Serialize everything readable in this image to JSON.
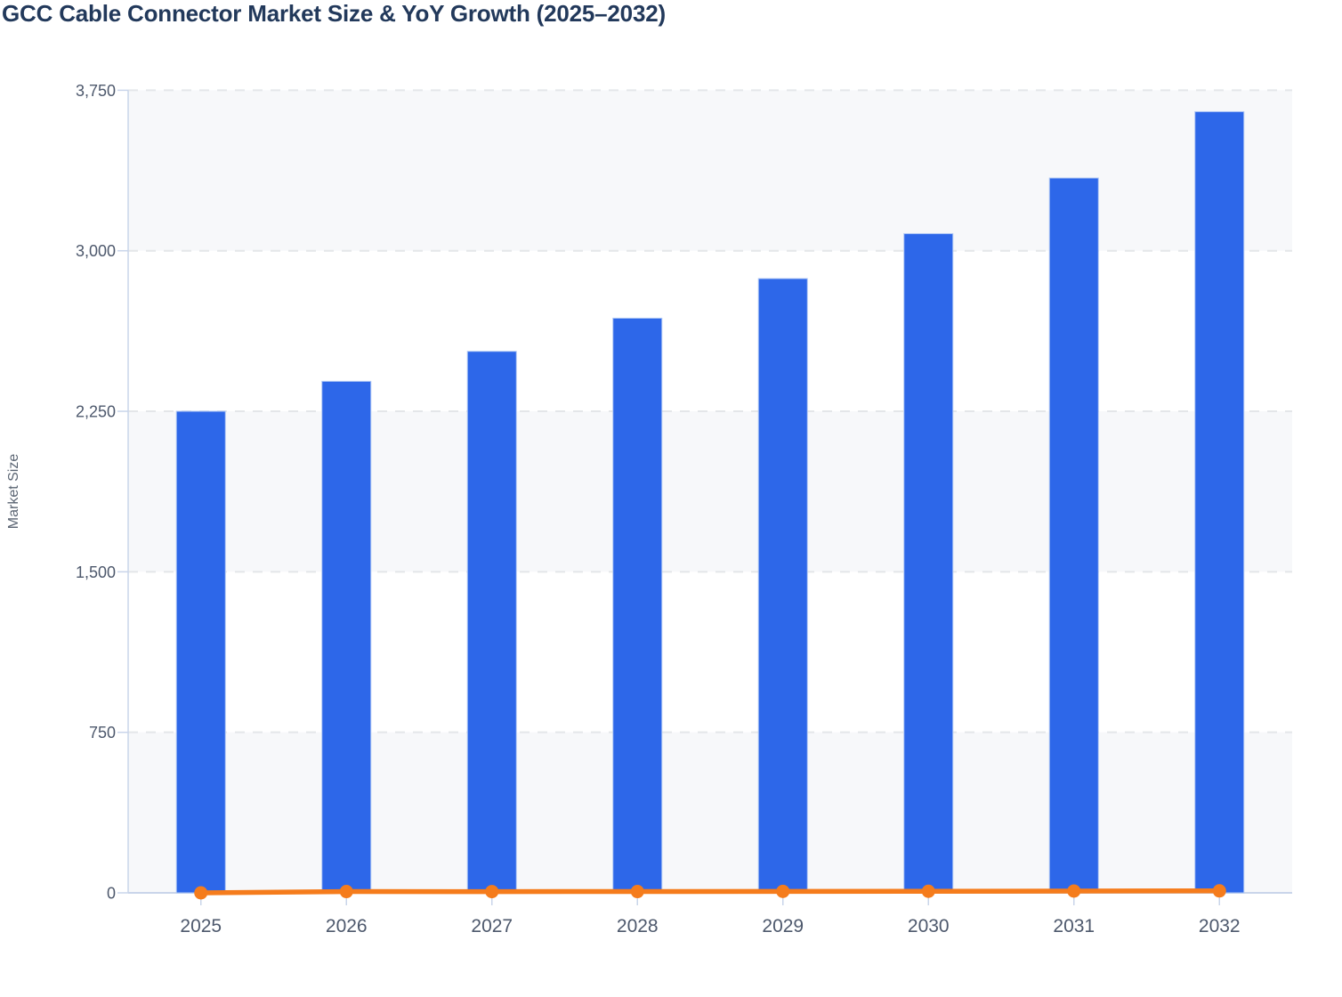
{
  "chart_data": {
    "type": "bar",
    "title": "GCC Cable Connector Market Size & YoY Growth (2025–2032)",
    "xlabel": "",
    "ylabel": "Market Size",
    "categories": [
      "2025",
      "2026",
      "2027",
      "2028",
      "2029",
      "2030",
      "2031",
      "2032"
    ],
    "series": [
      {
        "name": "Market Size",
        "type": "bar",
        "values": [
          2250,
          2390,
          2530,
          2685,
          2870,
          3080,
          3340,
          3650
        ]
      },
      {
        "name": "YoY Growth",
        "type": "line",
        "values": [
          0,
          6.0,
          5.9,
          6.1,
          6.9,
          7.3,
          8.4,
          9.3
        ],
        "note": "Line is plotted against the same 0-3,750 axis so it renders flat along the zero baseline; percentage values are not labeled on the chart and are estimated from bar ratios."
      }
    ],
    "ylim": [
      0,
      3750
    ],
    "ytick_step": 750,
    "ytick_labels": [
      "0",
      "750",
      "1,500",
      "2,250",
      "3,000",
      "3,750"
    ],
    "grid": "dashed horizontal gridlines with alternating plot bands",
    "legend_position": "none",
    "colors": {
      "bar": "#2d67e9",
      "bar_border": "#adc6f4",
      "line": "#f57c1c",
      "band": "#f7f8fa",
      "grid": "#e4e6e9",
      "axis": "#c9d5ea",
      "title_text": "#22395b",
      "tick_text": "#4d586c"
    }
  }
}
